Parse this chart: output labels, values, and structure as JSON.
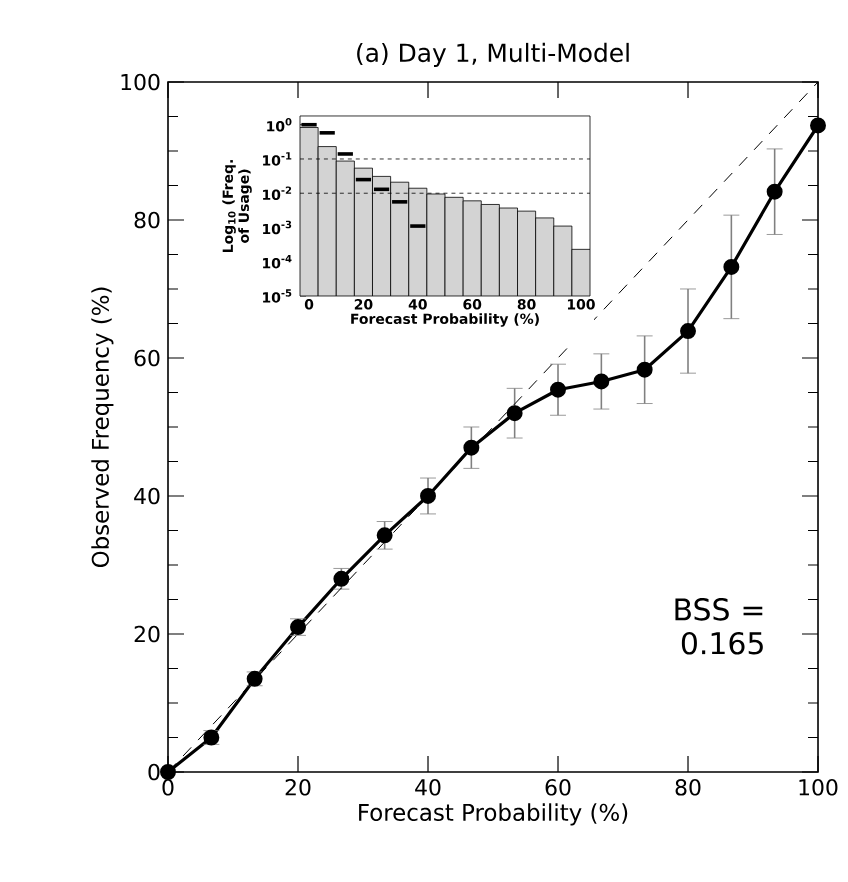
{
  "chart_data": [
    {
      "type": "line",
      "title": "(a) Day 1, Multi-Model",
      "xlabel": "Forecast Probability (%)",
      "ylabel": "Observed Frequency (%)",
      "x": [
        0,
        6.67,
        13.33,
        20,
        26.67,
        33.33,
        40,
        46.67,
        53.33,
        60,
        66.67,
        73.33,
        80,
        86.67,
        93.33,
        100
      ],
      "series": [
        {
          "color": "#000000",
          "marker": "circle",
          "values": [
            0,
            5,
            13.5,
            21,
            28,
            34.3,
            40,
            47,
            52,
            55.4,
            56.6,
            58.3,
            63.9,
            73.2,
            84.1,
            93.7
          ],
          "errors": [
            null,
            1,
            1,
            1.2,
            1.5,
            2,
            2.6,
            3,
            3.6,
            3.7,
            4,
            4.9,
            6.1,
            7.5,
            6.2,
            null
          ]
        },
        {
          "type": "line",
          "color": "#000000",
          "line_style": "dashed",
          "x": [
            0,
            100
          ],
          "values": [
            0,
            100
          ]
        }
      ],
      "xlim": [
        0,
        100
      ],
      "ylim": [
        0,
        100
      ],
      "xticks": [
        0,
        20,
        40,
        60,
        80,
        100
      ],
      "yticks": [
        0,
        20,
        40,
        60,
        80,
        100
      ],
      "annotations": [
        "BSS = 0.165"
      ]
    },
    {
      "type": "histogram",
      "xlabel": "Forecast Probability (%)",
      "ylabel": "Log$_{10}$ (Freq. of Usage)",
      "bins": [
        -3.33,
        3.33,
        10,
        16.67,
        23.33,
        30,
        36.67,
        43.33,
        50,
        56.67,
        63.33,
        70,
        76.67,
        83.33,
        90,
        96.67,
        103.33
      ],
      "values": [
        0.83,
        0.23,
        0.087,
        0.054,
        0.031,
        0.021,
        0.014,
        0.0095,
        0.0076,
        0.006,
        0.0047,
        0.0037,
        0.003,
        0.0019,
        0.0011,
        0.00023
      ],
      "color": "#d3d3d3",
      "series": [
        {
          "type": "line",
          "color": "#000000",
          "x": [
            -2.8,
            2.8
          ],
          "values": [
            1.0,
            1.0
          ]
        },
        {
          "type": "line",
          "color": "#000000",
          "x": [
            3.87,
            9.47
          ],
          "values": [
            0.58,
            0.58
          ]
        },
        {
          "type": "line",
          "color": "#000000",
          "x": [
            10.53,
            16.13
          ],
          "values": [
            0.14,
            0.14
          ]
        },
        {
          "type": "line",
          "color": "#000000",
          "x": [
            17.2,
            22.8
          ],
          "values": [
            0.025,
            0.025
          ]
        },
        {
          "type": "line",
          "color": "#000000",
          "x": [
            23.87,
            29.47
          ],
          "values": [
            0.013,
            0.013
          ]
        },
        {
          "type": "line",
          "color": "#000000",
          "x": [
            30.53,
            36.13
          ],
          "values": [
            0.0056,
            0.0056
          ]
        },
        {
          "type": "line",
          "color": "#000000",
          "x": [
            37.2,
            42.8
          ],
          "values": [
            0.0011,
            0.0011
          ]
        }
      ],
      "log": "y",
      "xlim": [
        -3.33,
        103.33
      ],
      "ylim": [
        1e-05,
        1.8
      ],
      "xticks": [
        0,
        20,
        40,
        60,
        80,
        100
      ],
      "yticks": [
        {
          "value": 1,
          "label": "10$^{0}$"
        },
        {
          "value": 0.1,
          "label": "10$^{-1}$"
        },
        {
          "value": 0.01,
          "label": "10$^{-2}$"
        },
        {
          "value": 0.001,
          "label": "10$^{-3}$"
        },
        {
          "value": 0.0001,
          "label": "10$^{-4}$"
        },
        {
          "value": 1e-05,
          "label": "10$^{-5}$"
        }
      ],
      "ref_lines": [
        {
          "axis": "y",
          "value": 0.1,
          "line_style": "dotted"
        },
        {
          "axis": "y",
          "value": 0.01,
          "line_style": "dotted"
        }
      ]
    }
  ]
}
